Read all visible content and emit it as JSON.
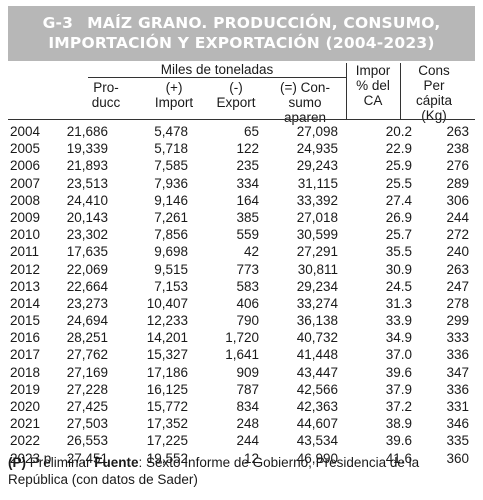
{
  "title": {
    "code": "G-3",
    "line1": "MAÍZ GRANO. PRODUCCIÓN, CONSUMO,",
    "line2": "IMPORTACIÓN Y EXPORTACIÓN (2004-2023)"
  },
  "headers": {
    "group": "Miles de toneladas",
    "produccion": [
      "Pro-",
      "ducc"
    ],
    "importacion": [
      "(+)",
      "Import"
    ],
    "exportacion": [
      "(-)",
      "Export"
    ],
    "consumo": [
      "(=) Con-",
      "sumo",
      "aparen"
    ],
    "importaciones_pct": [
      "Impor",
      "% del",
      "CA"
    ],
    "consumo_pc": [
      "Cons",
      "Per",
      "cápita",
      "(Kg)"
    ]
  },
  "rows": [
    {
      "year": "2004",
      "prod": "21,686",
      "imp": "5,478",
      "exp": "65",
      "cons": "27,098",
      "pct": "20.2",
      "kg": "263"
    },
    {
      "year": "2005",
      "prod": "19,339",
      "imp": "5,718",
      "exp": "122",
      "cons": "24,935",
      "pct": "22.9",
      "kg": "238"
    },
    {
      "year": "2006",
      "prod": "21,893",
      "imp": "7,585",
      "exp": "235",
      "cons": "29,243",
      "pct": "25.9",
      "kg": "276"
    },
    {
      "year": "2007",
      "prod": "23,513",
      "imp": "7,936",
      "exp": "334",
      "cons": "31,115",
      "pct": "25.5",
      "kg": "289"
    },
    {
      "year": "2008",
      "prod": "24,410",
      "imp": "9,146",
      "exp": "164",
      "cons": "33,392",
      "pct": "27.4",
      "kg": "306"
    },
    {
      "year": "2009",
      "prod": "20,143",
      "imp": "7,261",
      "exp": "385",
      "cons": "27,018",
      "pct": "26.9",
      "kg": "244"
    },
    {
      "year": "2010",
      "prod": "23,302",
      "imp": "7,856",
      "exp": "559",
      "cons": "30,599",
      "pct": "25.7",
      "kg": "272"
    },
    {
      "year": "2011",
      "prod": "17,635",
      "imp": "9,698",
      "exp": "42",
      "cons": "27,291",
      "pct": "35.5",
      "kg": "240"
    },
    {
      "year": "2012",
      "prod": "22,069",
      "imp": "9,515",
      "exp": "773",
      "cons": "30,811",
      "pct": "30.9",
      "kg": "263"
    },
    {
      "year": "2013",
      "prod": "22,664",
      "imp": "7,153",
      "exp": "583",
      "cons": "29,234",
      "pct": "24.5",
      "kg": "247"
    },
    {
      "year": "2014",
      "prod": "23,273",
      "imp": "10,407",
      "exp": "406",
      "cons": "33,274",
      "pct": "31.3",
      "kg": "278"
    },
    {
      "year": "2015",
      "prod": "24,694",
      "imp": "12,233",
      "exp": "790",
      "cons": "36,138",
      "pct": "33.9",
      "kg": "299"
    },
    {
      "year": "2016",
      "prod": "28,251",
      "imp": "14,201",
      "exp": "1,720",
      "cons": "40,732",
      "pct": "34.9",
      "kg": "333"
    },
    {
      "year": "2017",
      "prod": "27,762",
      "imp": "15,327",
      "exp": "1,641",
      "cons": "41,448",
      "pct": "37.0",
      "kg": "336"
    },
    {
      "year": "2018",
      "prod": "27,169",
      "imp": "17,186",
      "exp": "909",
      "cons": "43,447",
      "pct": "39.6",
      "kg": "347"
    },
    {
      "year": "2019",
      "prod": "27,228",
      "imp": "16,125",
      "exp": "787",
      "cons": "42,566",
      "pct": "37.9",
      "kg": "336"
    },
    {
      "year": "2020",
      "prod": "27,425",
      "imp": "15,772",
      "exp": "834",
      "cons": "42,363",
      "pct": "37.2",
      "kg": "331"
    },
    {
      "year": "2021",
      "prod": "27,503",
      "imp": "17,352",
      "exp": "248",
      "cons": "44,607",
      "pct": "38.9",
      "kg": "346"
    },
    {
      "year": "2022",
      "prod": "26,553",
      "imp": "17,225",
      "exp": "244",
      "cons": "43,534",
      "pct": "39.6",
      "kg": "335"
    },
    {
      "year": "2023 p",
      "prod": "27,451",
      "imp": "19,552",
      "exp": "12",
      "cons": "46,990",
      "pct": "41.6",
      "kg": "360"
    }
  ],
  "footnote": {
    "marker": "(P)",
    "marker_text": " Preliminar ",
    "source_label": "Fuente",
    "source_text": ": Sexto Informe de Gobierno, Presidencia de la República (con datos de Sader)"
  },
  "colors": {
    "banner_bg": "#b7b7b7",
    "banner_text": "#ffffff",
    "rule": "#333333"
  }
}
